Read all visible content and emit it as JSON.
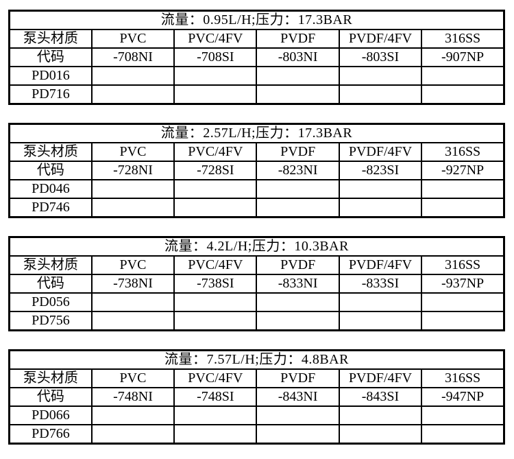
{
  "page": {
    "background": "#ffffff",
    "text_color": "#000000",
    "border_color": "#000000"
  },
  "tables": [
    {
      "title": "流量：0.95L/H;压力：17.3BAR",
      "material_label": "泵头材质",
      "code_label": "代码",
      "materials": [
        "PVC",
        "PVC/4FV",
        "PVDF",
        "PVDF/4FV",
        "316SS"
      ],
      "codes": [
        "-708NI",
        "-708SI",
        "-803NI",
        "-803SI",
        "-907NP"
      ],
      "models": [
        "PD016",
        "PD716"
      ]
    },
    {
      "title": "流量：2.57L/H;压力：17.3BAR",
      "material_label": "泵头材质",
      "code_label": "代码",
      "materials": [
        "PVC",
        "PVC/4FV",
        "PVDF",
        "PVDF/4FV",
        "316SS"
      ],
      "codes": [
        "-728NI",
        "-728SI",
        "-823NI",
        "-823SI",
        "-927NP"
      ],
      "models": [
        "PD046",
        "PD746"
      ]
    },
    {
      "title": "流量：4.2L/H;压力：10.3BAR",
      "material_label": "泵头材质",
      "code_label": "代码",
      "materials": [
        "PVC",
        "PVC/4FV",
        "PVDF",
        "PVDF/4FV",
        "316SS"
      ],
      "codes": [
        "-738NI",
        "-738SI",
        "-833NI",
        "-833SI",
        "-937NP"
      ],
      "models": [
        "PD056",
        "PD756"
      ]
    },
    {
      "title": "流量：7.57L/H;压力：4.8BAR",
      "material_label": "泵头材质",
      "code_label": "代码",
      "materials": [
        "PVC",
        "PVC/4FV",
        "PVDF",
        "PVDF/4FV",
        "316SS"
      ],
      "codes": [
        "-748NI",
        "-748SI",
        "-843NI",
        "-843SI",
        "-947NP"
      ],
      "models": [
        "PD066",
        "PD766"
      ]
    }
  ]
}
